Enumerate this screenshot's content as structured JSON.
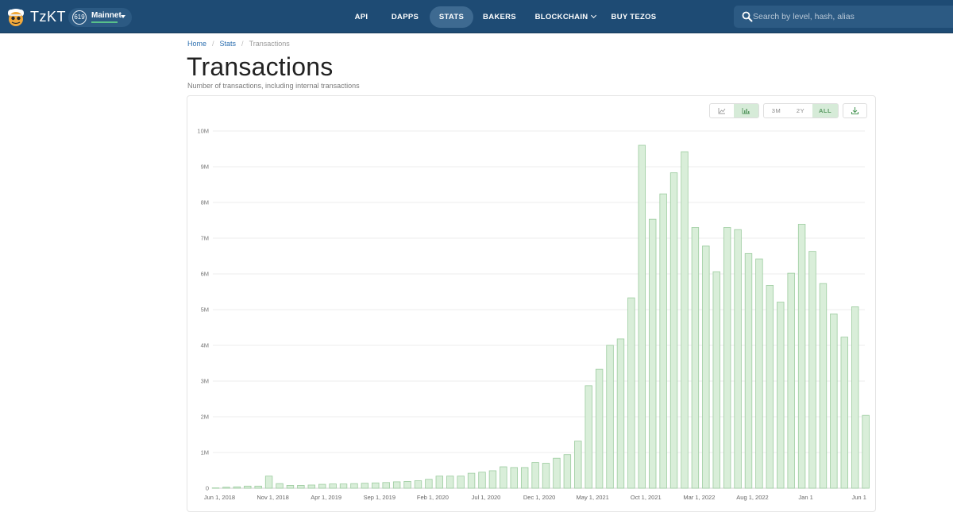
{
  "header": {
    "brand": "TzKT",
    "network": {
      "badge": "619",
      "name": "Mainnet"
    },
    "nav": [
      {
        "label": "API",
        "active": false
      },
      {
        "label": "DAPPS",
        "active": false
      },
      {
        "label": "STATS",
        "active": true
      },
      {
        "label": "BAKERS",
        "active": false
      },
      {
        "label": "BLOCKCHAIN",
        "active": false,
        "dropdown": true
      },
      {
        "label": "BUY TEZOS",
        "active": false
      }
    ],
    "search": {
      "placeholder": "Search by level, hash, alias",
      "icon": "search-icon"
    }
  },
  "breadcrumb": {
    "home": "Home",
    "stats": "Stats",
    "current": "Transactions",
    "separator": "/"
  },
  "page": {
    "title": "Transactions",
    "subtitle": "Number of transactions, including internal transactions"
  },
  "toolbar": {
    "chart_types": [
      {
        "icon": "line-chart-icon",
        "active": false
      },
      {
        "icon": "bar-chart-icon",
        "active": true
      }
    ],
    "ranges": [
      {
        "label": "3M",
        "active": false
      },
      {
        "label": "2Y",
        "active": false
      },
      {
        "label": "ALL",
        "active": true
      }
    ],
    "download_icon": "download-icon"
  },
  "colors": {
    "header": "#1e4b74",
    "bar_fill": "#d9eed9",
    "bar_stroke": "#9ccc9f",
    "accent_green": "#58c08a"
  },
  "chart_data": {
    "type": "bar",
    "yticks": [
      "0",
      "1M",
      "2M",
      "3M",
      "4M",
      "5M",
      "6M",
      "7M",
      "8M",
      "9M",
      "10M"
    ],
    "xticks": [
      {
        "label": "Jun 1, 2018",
        "index": 0
      },
      {
        "label": "Nov 1, 2018",
        "index": 5
      },
      {
        "label": "Apr 1, 2019",
        "index": 10
      },
      {
        "label": "Sep 1, 2019",
        "index": 15
      },
      {
        "label": "Feb 1, 2020",
        "index": 20
      },
      {
        "label": "Jul 1, 2020",
        "index": 25
      },
      {
        "label": "Dec 1, 2020",
        "index": 30
      },
      {
        "label": "May 1, 2021",
        "index": 35
      },
      {
        "label": "Oct 1, 2021",
        "index": 40
      },
      {
        "label": "Mar 1, 2022",
        "index": 45
      },
      {
        "label": "Aug 1, 2022",
        "index": 50
      },
      {
        "label": "Jan 1",
        "index": 55
      },
      {
        "label": "Jun 1",
        "index": 60
      }
    ],
    "ylim": [
      0,
      10000000
    ],
    "values": [
      10000,
      30000,
      40000,
      60000,
      60000,
      340000,
      130000,
      80000,
      80000,
      90000,
      110000,
      120000,
      120000,
      130000,
      140000,
      150000,
      160000,
      180000,
      190000,
      210000,
      250000,
      340000,
      340000,
      340000,
      420000,
      450000,
      490000,
      600000,
      580000,
      580000,
      720000,
      700000,
      840000,
      940000,
      1320000,
      2870000,
      3330000,
      4000000,
      4180000,
      5330000,
      9600000,
      7530000,
      8240000,
      8830000,
      9420000,
      7300000,
      6780000,
      6060000,
      7300000,
      7240000,
      6570000,
      6420000,
      5680000,
      5210000,
      6020000,
      7390000,
      6630000,
      5730000,
      4880000,
      4230000,
      5080000,
      2040000
    ],
    "grid": true,
    "legend": "none"
  }
}
